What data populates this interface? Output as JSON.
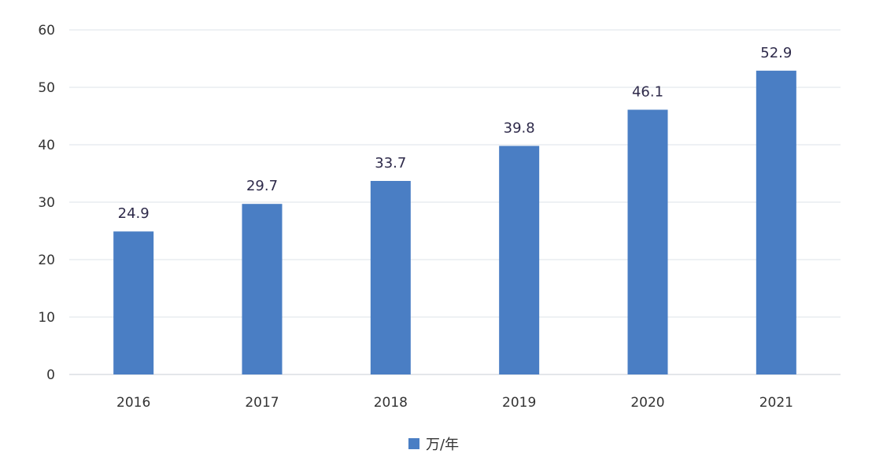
{
  "chart_data": {
    "type": "bar",
    "categories": [
      "2016",
      "2017",
      "2018",
      "2019",
      "2020",
      "2021"
    ],
    "series": [
      {
        "name": "万/年",
        "values": [
          24.9,
          29.7,
          33.7,
          39.8,
          46.1,
          52.9
        ],
        "labels": [
          "24.9",
          "29.7",
          "33.7",
          "39.8",
          "46.1",
          "52.9"
        ],
        "color": "#4a7ec4"
      }
    ],
    "ylim": [
      0,
      60
    ],
    "yticks": [
      0,
      10,
      20,
      30,
      40,
      50,
      60
    ],
    "ytick_labels": [
      "0",
      "10",
      "20",
      "30",
      "40",
      "50",
      "60"
    ],
    "grid": true,
    "legend": "bottom",
    "colors": {
      "bar": "#4a7ec4",
      "grid": "#dde3ea",
      "axis": "#c8ced6",
      "text": "#333333",
      "value_label": "#2e2a4a"
    }
  }
}
